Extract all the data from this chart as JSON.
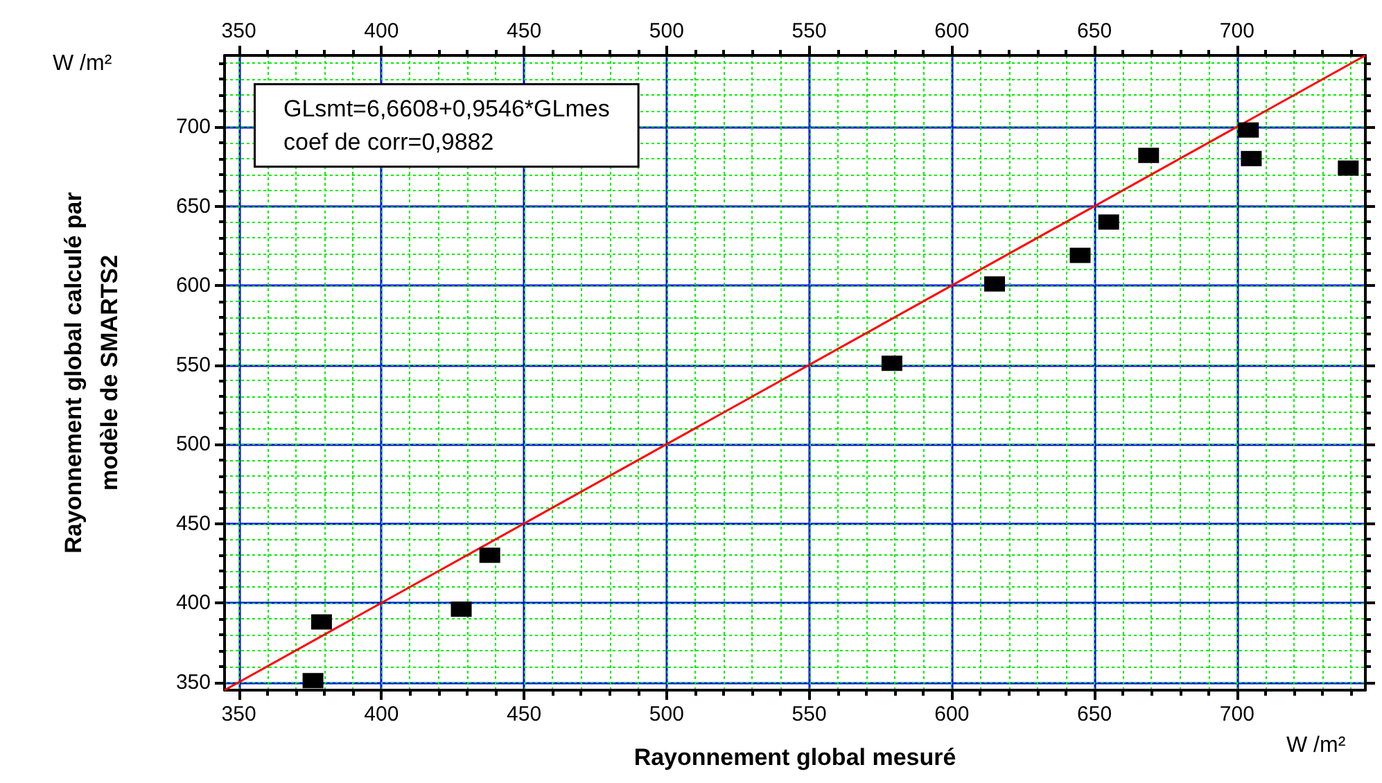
{
  "chart_data": {
    "type": "scatter",
    "xlabel": "Rayonnement global mesuré",
    "ylabel": "Rayonnement global calculé par\nmodèle de SMARTS2",
    "annotations": [
      "GLsmt=6,6608+0,9546*GLmes\ncoef de corr=0,9882",
      "W /m²",
      "W /m²"
    ],
    "series": [
      {
        "color": "#000000",
        "marker": "square",
        "x": [
          376,
          379,
          428,
          438,
          579,
          615,
          645,
          655,
          669,
          704,
          705,
          739
        ],
        "values": [
          351,
          388,
          396,
          430,
          551,
          601,
          619,
          640,
          682,
          698,
          680,
          674
        ]
      },
      {
        "type": "line",
        "color": "#ff0000",
        "marker": "none",
        "x": [
          345,
          745
        ],
        "values": [
          345,
          745
        ]
      }
    ],
    "xlim": [
      345,
      745
    ],
    "xticks": [
      350,
      400,
      450,
      500,
      550,
      600,
      650,
      700
    ],
    "x2lim": [
      345,
      745
    ],
    "x2ticks": [
      350,
      400,
      450,
      500,
      550,
      600,
      650,
      700
    ],
    "ylim": [
      345,
      745
    ],
    "yticks": [
      350,
      400,
      450,
      500,
      550,
      600,
      650,
      700
    ],
    "grid": true
  }
}
